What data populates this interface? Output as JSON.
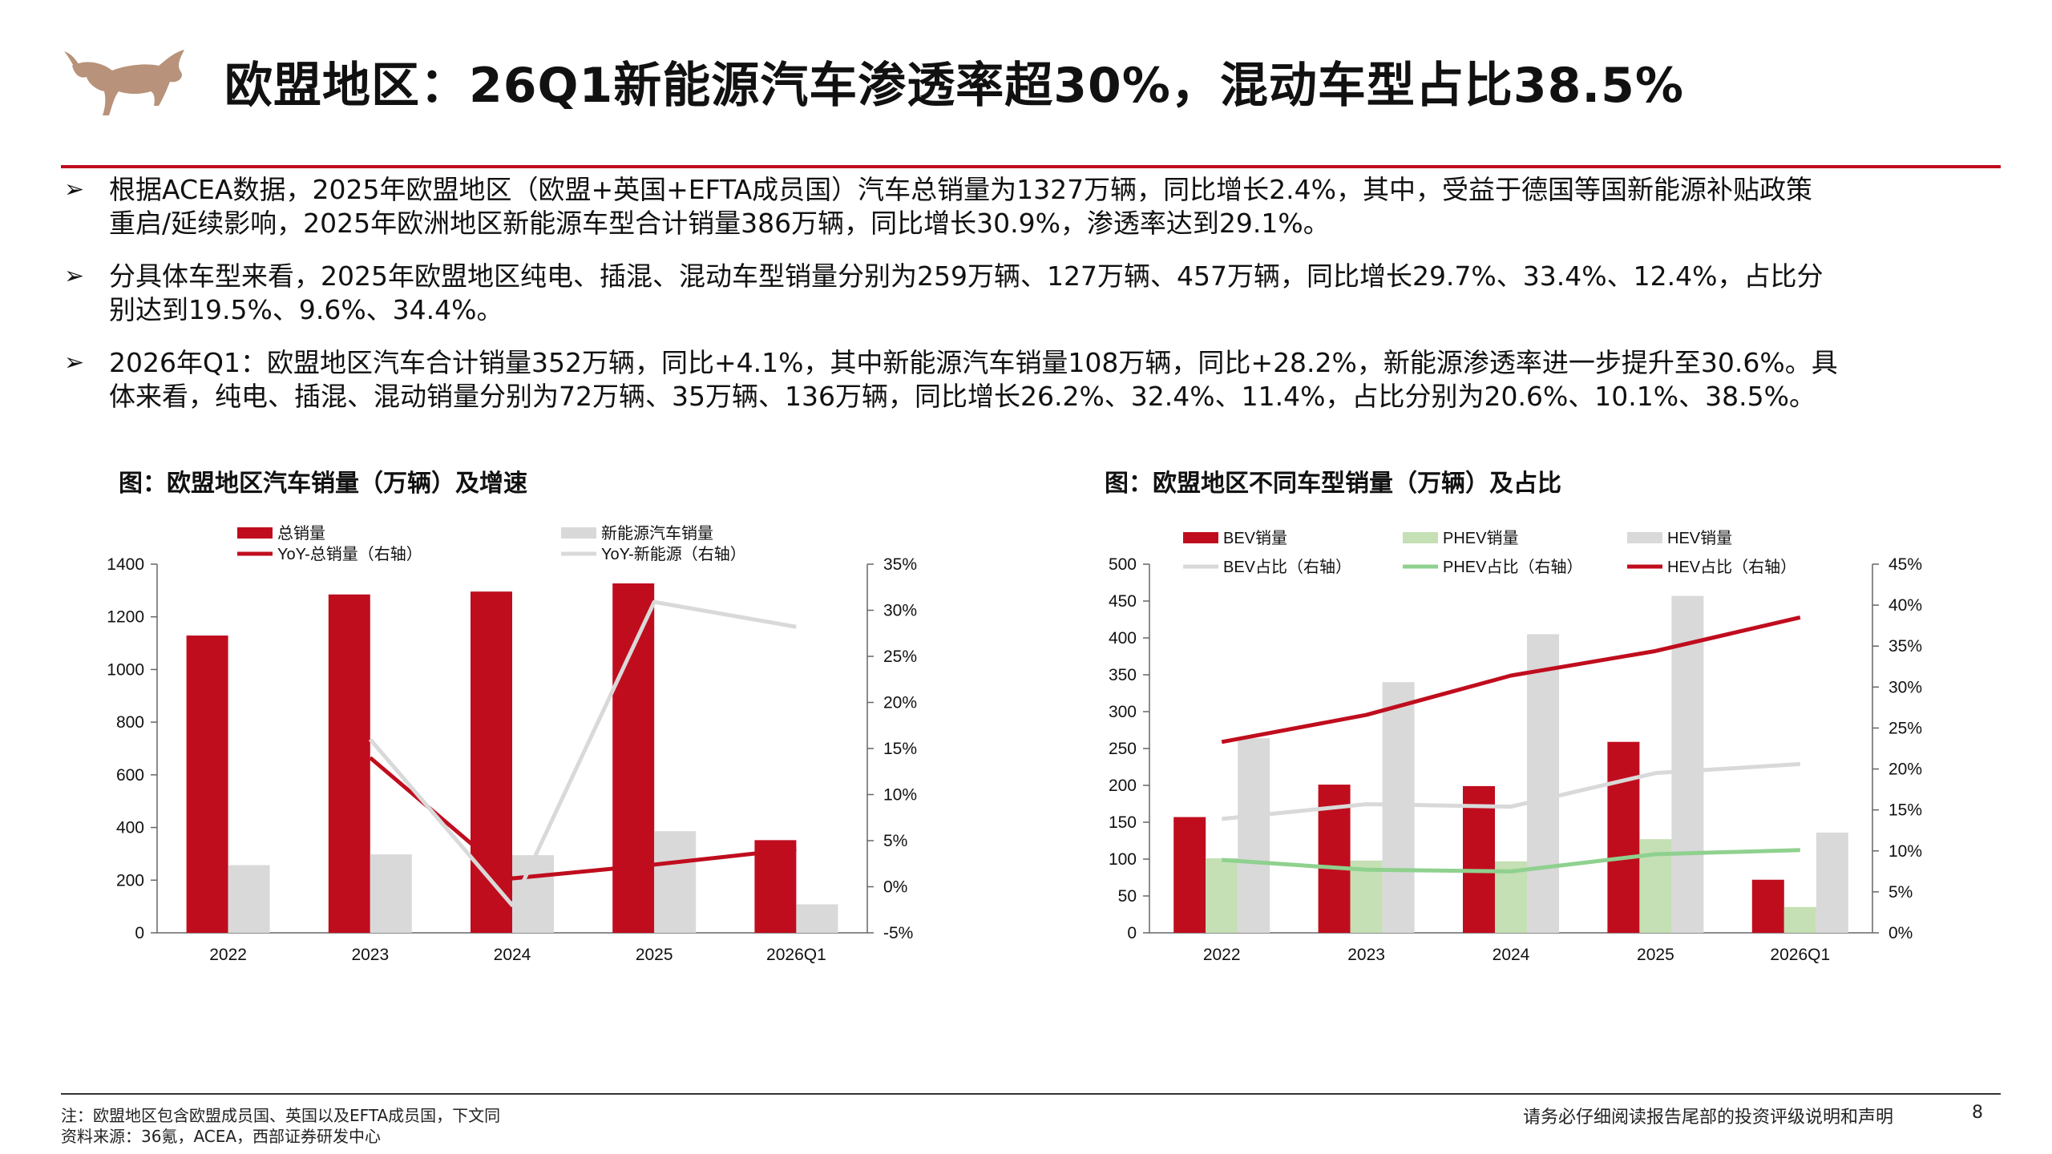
{
  "header": {
    "title": "欧盟地区：26Q1新能源汽车渗透率超30%，混动车型占比38.5%",
    "accent_color": "#c00d1e",
    "logo_icon": "bull-icon"
  },
  "bullets": [
    {
      "marker": "➢",
      "lines": [
        "根据ACEA数据，2025年欧盟地区（欧盟+英国+EFTA成员国）汽车总销量为1327万辆，同比增长2.4%，其中，受益于德国等国新能源补贴政策",
        "重启/延续影响，2025年欧洲地区新能源车型合计销量386万辆，同比增长30.9%，渗透率达到29.1%。"
      ]
    },
    {
      "marker": "➢",
      "lines": [
        "分具体车型来看，2025年欧盟地区纯电、插混、混动车型销量分别为259万辆、127万辆、457万辆，同比增长29.7%、33.4%、12.4%，占比分",
        "别达到19.5%、9.6%、34.4%。"
      ]
    },
    {
      "marker": "➢",
      "lines": [
        "2026年Q1：欧盟地区汽车合计销量352万辆，同比+4.1%，其中新能源汽车销量108万辆，同比+28.2%，新能源渗透率进一步提升至30.6%。具",
        "体来看，纯电、插混、混动销量分别为72万辆、35万辆、136万辆，同比增长26.2%、32.4%、11.4%，占比分别为20.6%、10.1%、38.5%。"
      ]
    }
  ],
  "chart_data": [
    {
      "type": "bar",
      "title": "图：欧盟地区汽车销量（万辆）及增速",
      "categories": [
        "2022",
        "2023",
        "2024",
        "2025",
        "2026Q1"
      ],
      "ylim": [
        0,
        1400
      ],
      "yticks": [
        "1400",
        "1200",
        "1000",
        "800",
        "600",
        "400",
        "200",
        "0"
      ],
      "y2lim": [
        -5,
        35
      ],
      "y2ticks": [
        "35%",
        "30%",
        "25%",
        "20%",
        "15%",
        "10%",
        "5%",
        "0%",
        "-5%"
      ],
      "series": [
        {
          "name": "总销量",
          "kind": "bar",
          "axis": "left",
          "color": "#c00d1e",
          "values": [
            1129,
            1285,
            1296,
            1327,
            352
          ]
        },
        {
          "name": "新能源汽车销量",
          "kind": "bar",
          "axis": "left",
          "color": "#d9d9d9",
          "values": [
            257,
            298,
            295,
            386,
            108
          ]
        },
        {
          "name": "YoY-总销量（右轴）",
          "kind": "line",
          "axis": "right",
          "color": "#c00d1e",
          "values": [
            null,
            14,
            0.9,
            2.4,
            4.1
          ]
        },
        {
          "name": "YoY-新能源（右轴）",
          "kind": "line",
          "axis": "right",
          "color": "#d9d9d9",
          "values": [
            null,
            16,
            -2,
            30.9,
            28.2
          ]
        }
      ],
      "legend": "top"
    },
    {
      "type": "bar",
      "title": "图：欧盟地区不同车型销量（万辆）及占比",
      "categories": [
        "2022",
        "2023",
        "2024",
        "2025",
        "2026Q1"
      ],
      "ylim": [
        0,
        500
      ],
      "yticks": [
        "500",
        "450",
        "400",
        "350",
        "300",
        "250",
        "200",
        "150",
        "100",
        "50",
        "0"
      ],
      "y2lim": [
        0,
        45
      ],
      "y2ticks": [
        "45%",
        "40%",
        "35%",
        "30%",
        "25%",
        "20%",
        "15%",
        "10%",
        "5%",
        "0%"
      ],
      "series": [
        {
          "name": "BEV销量",
          "kind": "bar",
          "axis": "left",
          "color": "#c00d1e",
          "values": [
            157,
            201,
            199,
            259,
            72
          ]
        },
        {
          "name": "PHEV销量",
          "kind": "bar",
          "axis": "left",
          "color": "#c5e0b4",
          "values": [
            101,
            98,
            97,
            127,
            35
          ]
        },
        {
          "name": "HEV销量",
          "kind": "bar",
          "axis": "left",
          "color": "#d9d9d9",
          "values": [
            264,
            340,
            405,
            457,
            136
          ]
        },
        {
          "name": "BEV占比（右轴）",
          "kind": "line",
          "axis": "right",
          "color": "#d9d9d9",
          "values": [
            13.9,
            15.7,
            15.4,
            19.5,
            20.6
          ]
        },
        {
          "name": "PHEV占比（右轴）",
          "kind": "line",
          "axis": "right",
          "color": "#8fd18f",
          "values": [
            8.9,
            7.7,
            7.5,
            9.6,
            10.1
          ]
        },
        {
          "name": "HEV占比（右轴）",
          "kind": "line",
          "axis": "right",
          "color": "#c00d1e",
          "values": [
            23.3,
            26.6,
            31.4,
            34.4,
            38.5
          ]
        }
      ],
      "legend": "top"
    }
  ],
  "footer": {
    "note": "注：欧盟地区包含欧盟成员国、英国以及EFTA成员国，下文同",
    "source": "资料来源：36氪，ACEA，西部证券研发中心",
    "disclaimer": "请务必仔细阅读报告尾部的投资评级说明和声明",
    "page_number": "8"
  }
}
